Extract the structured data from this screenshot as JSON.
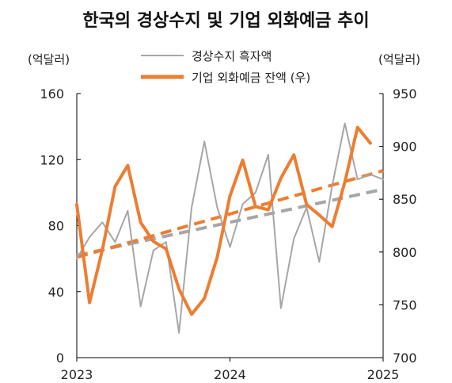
{
  "chart_data": {
    "type": "line",
    "title": "한국의 경상수지 및 기업 외화예금 추이",
    "left_axis_unit": "(억달러)",
    "right_axis_unit": "(억달러)",
    "x_ticks": [
      "2023",
      "2024",
      "2025"
    ],
    "x_range": [
      2023.0,
      2025.0
    ],
    "left_ylim": [
      0,
      160
    ],
    "left_yticks": [
      "0",
      "40",
      "80",
      "120",
      "160"
    ],
    "right_ylim": [
      700,
      950
    ],
    "right_yticks": [
      "700",
      "750",
      "800",
      "850",
      "900",
      "950"
    ],
    "grid": false,
    "legend_position": "top",
    "series": [
      {
        "name": "경상수지 흑자액",
        "axis": "left",
        "color": "#a6a6a6",
        "x": [
          2023.0,
          2023.083,
          2023.167,
          2023.25,
          2023.333,
          2023.417,
          2023.5,
          2023.583,
          2023.667,
          2023.75,
          2023.833,
          2023.917,
          2024.0,
          2024.083,
          2024.167,
          2024.25,
          2024.333,
          2024.417,
          2024.5,
          2024.583,
          2024.667,
          2024.75,
          2024.833,
          2024.917,
          2025.0
        ],
        "values": [
          60,
          73,
          82,
          70,
          89,
          31,
          65,
          70,
          15,
          91,
          131,
          91,
          67,
          93,
          100,
          123,
          30,
          72,
          91,
          58,
          104,
          142,
          108,
          111,
          108
        ]
      },
      {
        "name": "기업 외화예금 잔액 (우)",
        "axis": "right",
        "color": "#ed7d31",
        "x": [
          2023.0,
          2023.083,
          2023.167,
          2023.25,
          2023.333,
          2023.417,
          2023.5,
          2023.583,
          2023.667,
          2023.75,
          2023.833,
          2023.917,
          2024.0,
          2024.083,
          2024.167,
          2024.25,
          2024.333,
          2024.417,
          2024.5,
          2024.583,
          2024.667,
          2024.75,
          2024.833,
          2024.917
        ],
        "values": [
          845,
          752,
          802,
          862,
          882,
          828,
          810,
          803,
          765,
          741,
          756,
          795,
          853,
          887,
          843,
          840,
          870,
          892,
          845,
          835,
          824,
          866,
          918,
          903
        ]
      }
    ],
    "trendlines": [
      {
        "of": "경상수지 흑자액",
        "axis": "left",
        "style": "dashed",
        "color": "#a6a6a6",
        "x": [
          2023.0,
          2025.0
        ],
        "values": [
          62,
          102
        ]
      },
      {
        "of": "기업 외화예금 잔액 (우)",
        "axis": "right",
        "style": "dashed",
        "color": "#ed7d31",
        "x": [
          2023.0,
          2025.0
        ],
        "values": [
          795,
          877
        ]
      }
    ]
  }
}
